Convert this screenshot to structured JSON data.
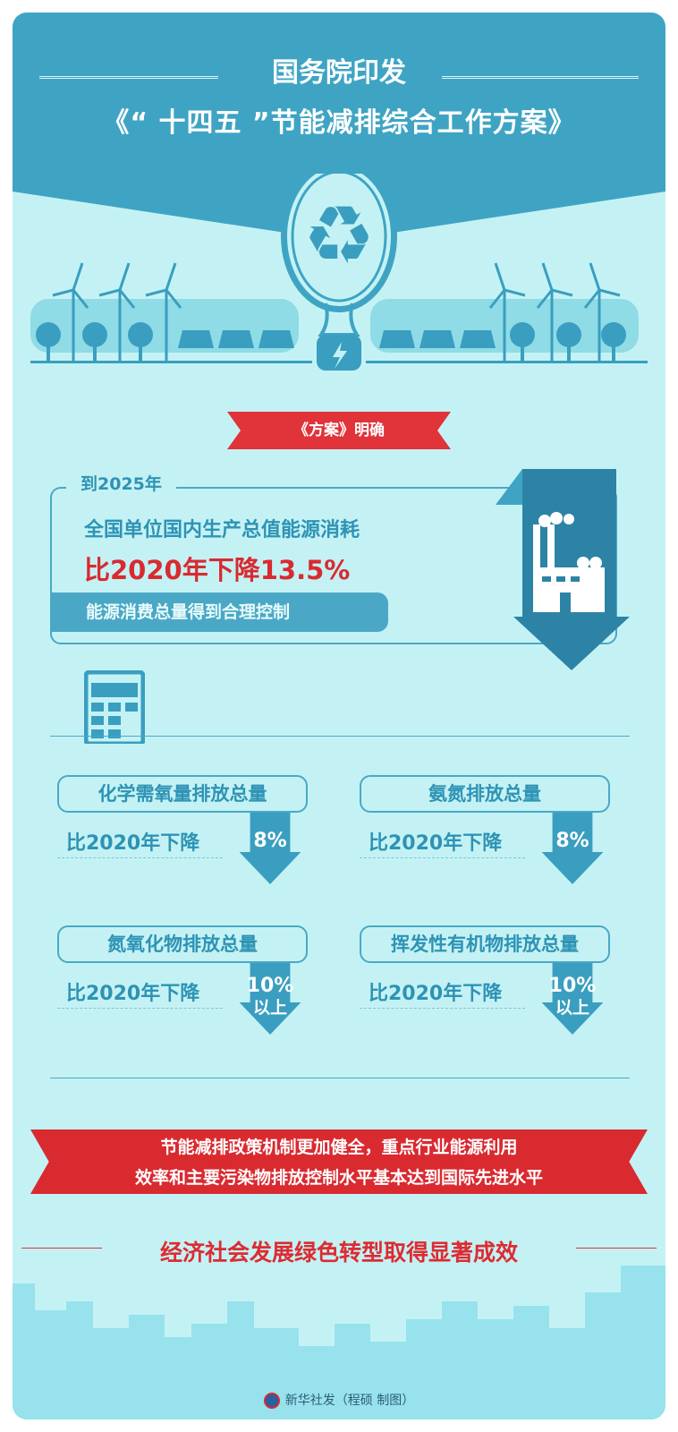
{
  "header": {
    "line1": "国务院印发",
    "line2": "《“ 十四五 ”节能减排综合工作方案》"
  },
  "banner": {
    "label": "《方案》明确"
  },
  "main_target": {
    "year": "到2025年",
    "subject": "全国单位国内生产总值能源消耗",
    "reduction": "比2020年下降13.5%",
    "note": "能源消费总量得到合理控制"
  },
  "pollutants": [
    {
      "name": "化学需氧量排放总量",
      "compare": "比2020年下降",
      "value": "8%",
      "suffix": ""
    },
    {
      "name": "氨氮排放总量",
      "compare": "比2020年下降",
      "value": "8%",
      "suffix": ""
    },
    {
      "name": "氮氧化物排放总量",
      "compare": "比2020年下降",
      "value": "10%",
      "suffix": "以上"
    },
    {
      "name": "挥发性有机物排放总量",
      "compare": "比2020年下降",
      "value": "10%",
      "suffix": "以上"
    }
  ],
  "conclusion": {
    "line1": "节能减排政策机制更加健全，重点行业能源利用",
    "line2": "效率和主要污染物排放控制水平基本达到国际先进水平",
    "headline": "经济社会发展绿色转型取得显著成效"
  },
  "footer": {
    "credit": "新华社发（程硕 制图）",
    "logo_text": "新华社"
  },
  "colors": {
    "header": "#3fa4c3",
    "background": "#c4f2f4",
    "teal_text": "#2e93b5",
    "red": "#d92a30",
    "arrow": "#2d83a6"
  },
  "icons": [
    "recycle-icon",
    "lightbulb-plug-icon",
    "wind-turbine-icon",
    "solar-panel-icon",
    "tree-icon",
    "factory-icon",
    "down-arrow-icon",
    "calculator-icon",
    "city-skyline",
    "xinhua-logo"
  ]
}
